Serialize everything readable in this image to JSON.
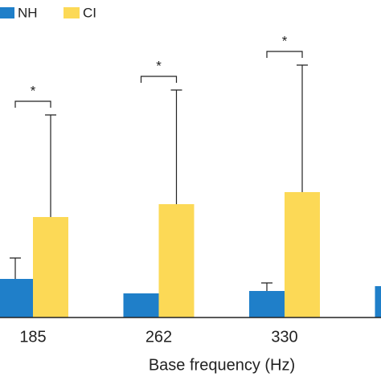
{
  "chart_data": {
    "type": "bar",
    "categories": [
      "185",
      "262",
      "330",
      null
    ],
    "series": [
      {
        "name": "NH",
        "color": "#1f7fc9",
        "values": [
          48,
          30,
          33,
          39
        ],
        "errors": [
          26,
          null,
          10,
          null
        ]
      },
      {
        "name": "CI",
        "color": "#fcd956",
        "values": [
          125,
          141,
          156,
          null
        ],
        "errors": [
          127,
          142,
          158,
          null
        ]
      }
    ],
    "annotations": [
      "*",
      "*",
      "*"
    ],
    "xlabel": "Base frequency (Hz)",
    "ylim": [
      0,
      395
    ],
    "legend": "top-left"
  }
}
